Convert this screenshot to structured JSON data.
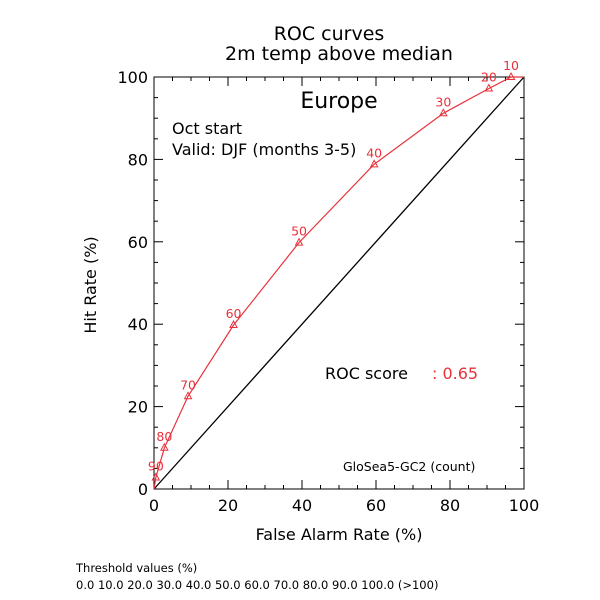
{
  "chart_data": {
    "type": "line",
    "title": "ROC curves",
    "subtitle": "2m temp above median",
    "region": "Europe",
    "annotation_lines": [
      "Oct start",
      "Valid: DJF (months 3-5)"
    ],
    "xlabel": "False Alarm Rate (%)",
    "ylabel": "Hit Rate (%)",
    "xlim": [
      0,
      100
    ],
    "ylim": [
      0,
      100
    ],
    "xticks": [
      0,
      20,
      40,
      60,
      80,
      100
    ],
    "yticks": [
      0,
      20,
      40,
      60,
      80,
      100
    ],
    "diagonal": true,
    "score_label": "ROC score",
    "score_value": ": 0.65",
    "model_label": "GloSea5-GC2 (count)",
    "series": [
      {
        "color": "#e8323c",
        "points": [
          {
            "x": 0,
            "y": 0,
            "label": ""
          },
          {
            "x": 0.5,
            "y": 2.8,
            "label": "90"
          },
          {
            "x": 2.8,
            "y": 10.0,
            "label": "80"
          },
          {
            "x": 9.2,
            "y": 22.5,
            "label": "70"
          },
          {
            "x": 21.5,
            "y": 39.8,
            "label": "60"
          },
          {
            "x": 39.2,
            "y": 59.8,
            "label": "50"
          },
          {
            "x": 59.5,
            "y": 78.8,
            "label": "40"
          },
          {
            "x": 78.2,
            "y": 91.2,
            "label": "30"
          },
          {
            "x": 90.5,
            "y": 97.2,
            "label": "20"
          },
          {
            "x": 96.5,
            "y": 100,
            "label": "10"
          },
          {
            "x": 100,
            "y": 100,
            "label": ""
          }
        ]
      }
    ],
    "diagonal_color": "#000000"
  },
  "footer": {
    "threshold_title": "Threshold values (%)",
    "threshold_values": "0.0 10.0 20.0 30.0 40.0 50.0 60.0 70.0 80.0 90.0 100.0 (>100)"
  }
}
